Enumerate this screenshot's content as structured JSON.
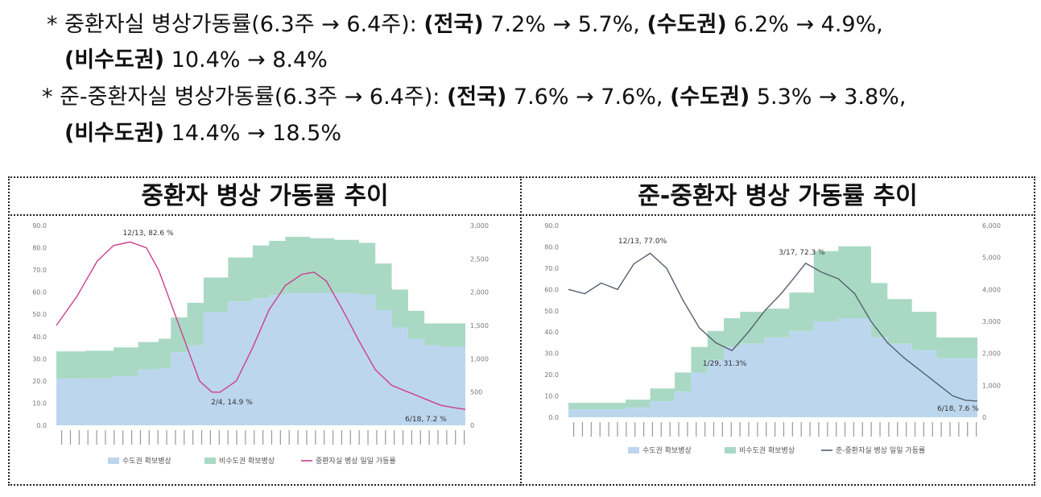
{
  "bullets": [
    {
      "marker": "*",
      "label": "중환자실 병상가동률(6.3주 → 6.4주):",
      "seg1_region": "(전국)",
      "seg1_values": "7.2% → 5.7%,",
      "seg2_region": "(수도권)",
      "seg2_values": "6.2% → 4.9%,",
      "seg3_region": "(비수도권)",
      "seg3_values": "10.4% → 8.4%"
    },
    {
      "marker": "*",
      "label": "준-중환자실 병상가동률(6.3주 → 6.4주):",
      "seg1_region": "(전국)",
      "seg1_values": "7.6% → 7.6%,",
      "seg2_region": "(수도권)",
      "seg2_values": "5.3% → 3.8%,",
      "seg3_region": "(비수도권)",
      "seg3_values": "14.4% → 18.5%"
    }
  ],
  "panels": {
    "left_title": "중환자 병상 가동률 추이",
    "right_title": "준-중환자 병상 가동률 추이"
  },
  "colors": {
    "capital_area": "#bcd6ee",
    "non_capital_area": "#a9d9c4",
    "icu_line": "#cc3e8e",
    "semi_icu_line": "#55606f"
  },
  "chart_data": [
    {
      "type": "area",
      "title": "중환자 병상 가동률 추이",
      "y_left_ticks": [
        "0.0",
        "10.0",
        "20.0",
        "30.0",
        "40.0",
        "50.0",
        "60.0",
        "70.0",
        "80.0",
        "90.0"
      ],
      "y_right_ticks": [
        "0",
        "500",
        "1,000",
        "1,500",
        "2,000",
        "2,500",
        "3,000"
      ],
      "ylim_left": [
        0,
        90
      ],
      "ylim_right": [
        0,
        3000
      ],
      "legend": [
        "수도권 확보병상",
        "비수도권 확보병상",
        "중환자실 병상 일일 가동률"
      ],
      "series": [
        {
          "name": "수도권 확보병상",
          "x": [
            0,
            0.07,
            0.14,
            0.2,
            0.25,
            0.28,
            0.32,
            0.36,
            0.42,
            0.48,
            0.52,
            0.56,
            0.62,
            0.68,
            0.74,
            0.78,
            0.82,
            0.86,
            0.9,
            0.94,
            1.0
          ],
          "values": [
            700,
            705,
            740,
            840,
            860,
            1100,
            1200,
            1700,
            1860,
            1910,
            1960,
            1990,
            1990,
            1985,
            1960,
            1730,
            1470,
            1300,
            1200,
            1180,
            1150
          ]
        },
        {
          "name": "비수도권 확보병상",
          "x": [
            0,
            0.07,
            0.14,
            0.2,
            0.25,
            0.28,
            0.32,
            0.36,
            0.42,
            0.48,
            0.52,
            0.56,
            0.62,
            0.68,
            0.74,
            0.78,
            0.82,
            0.86,
            0.9,
            0.94,
            1.0
          ],
          "values": [
            410,
            415,
            430,
            410,
            440,
            520,
            640,
            520,
            660,
            790,
            810,
            840,
            820,
            800,
            780,
            700,
            570,
            420,
            330,
            350,
            370
          ]
        },
        {
          "name": "중환자실 병상 일일 가동률",
          "x": [
            0,
            0.05,
            0.1,
            0.14,
            0.18,
            0.22,
            0.25,
            0.28,
            0.32,
            0.35,
            0.38,
            0.4,
            0.44,
            0.48,
            0.52,
            0.56,
            0.6,
            0.63,
            0.66,
            0.7,
            0.74,
            0.78,
            0.82,
            0.86,
            0.9,
            0.94,
            0.97,
            1.0
          ],
          "values": [
            45,
            58,
            74,
            81,
            82.6,
            80,
            70,
            55,
            35,
            20,
            15,
            14.9,
            20,
            35,
            52,
            63,
            68,
            69,
            65,
            52,
            38,
            25,
            18,
            15,
            12,
            9,
            8,
            7.2
          ]
        }
      ],
      "annotations": [
        "12/13, 82.6 %",
        "2/4, 14.9 %",
        "6/18, 7.2 %"
      ]
    },
    {
      "type": "area",
      "title": "준-중환자 병상 가동률 추이",
      "y_left_ticks": [
        "0.0",
        "10.0",
        "20.0",
        "30.0",
        "40.0",
        "50.0",
        "60.0",
        "70.0",
        "80.0",
        "90.0"
      ],
      "y_right_ticks": [
        "0",
        "1,000",
        "2,000",
        "3,000",
        "4,000",
        "5,000",
        "6,000"
      ],
      "ylim_left": [
        0,
        90
      ],
      "ylim_right": [
        0,
        6000
      ],
      "legend": [
        "수도권 확보병상",
        "비수도권 확보병상",
        "준-중환자실 병상 일일 가동률"
      ],
      "series": [
        {
          "name": "수도권 확보병상",
          "x": [
            0,
            0.08,
            0.14,
            0.2,
            0.26,
            0.3,
            0.34,
            0.38,
            0.42,
            0.48,
            0.54,
            0.6,
            0.66,
            0.7,
            0.74,
            0.78,
            0.84,
            0.9,
            1.0
          ],
          "values": [
            250,
            250,
            300,
            500,
            800,
            1400,
            1800,
            2200,
            2300,
            2500,
            2700,
            3000,
            3100,
            3100,
            2500,
            2300,
            2100,
            1850,
            1800
          ]
        },
        {
          "name": "비수도권 확보병상",
          "x": [
            0,
            0.08,
            0.14,
            0.2,
            0.26,
            0.3,
            0.34,
            0.38,
            0.42,
            0.48,
            0.54,
            0.6,
            0.66,
            0.7,
            0.74,
            0.78,
            0.84,
            0.9,
            1.0
          ],
          "values": [
            200,
            200,
            250,
            400,
            600,
            800,
            900,
            900,
            1000,
            900,
            1200,
            2200,
            2250,
            2250,
            1700,
            1400,
            1200,
            650,
            600
          ]
        },
        {
          "name": "준-중환자실 병상 일일 가동률",
          "x": [
            0,
            0.04,
            0.08,
            0.12,
            0.16,
            0.2,
            0.24,
            0.28,
            0.32,
            0.36,
            0.4,
            0.44,
            0.48,
            0.52,
            0.55,
            0.58,
            0.62,
            0.66,
            0.7,
            0.74,
            0.78,
            0.82,
            0.86,
            0.9,
            0.94,
            0.97,
            1.0
          ],
          "values": [
            60,
            58,
            63,
            60,
            72,
            77,
            70,
            55,
            42,
            35,
            31.3,
            40,
            50,
            58,
            65,
            72.3,
            68,
            65,
            58,
            45,
            35,
            28,
            22,
            16,
            10,
            8,
            7.6
          ]
        }
      ],
      "annotations": [
        "12/13, 77.0%",
        "3/17, 72.3 %",
        "1/29, 31.3%",
        "6/18, 7.6 %"
      ]
    }
  ]
}
